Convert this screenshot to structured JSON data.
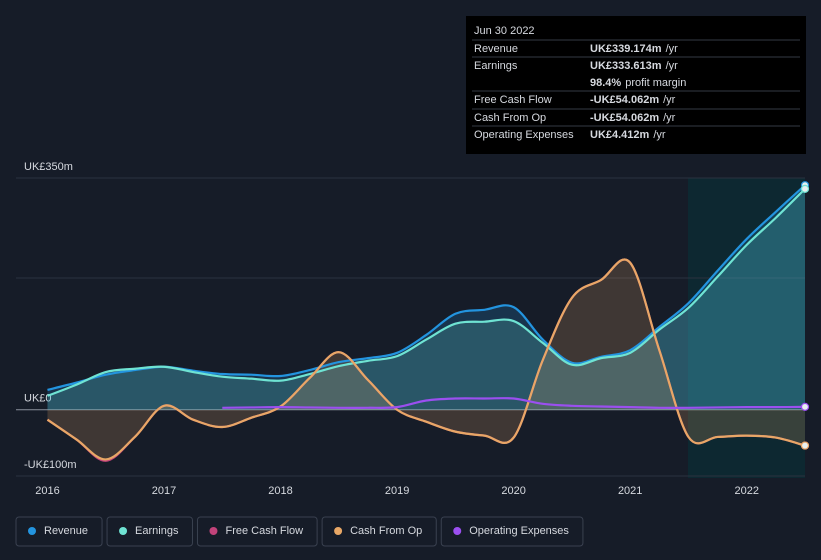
{
  "chart_data": {
    "type": "line",
    "x": [
      2016,
      2016.25,
      2016.5,
      2016.75,
      2017,
      2017.25,
      2017.5,
      2017.75,
      2018,
      2018.25,
      2018.5,
      2018.75,
      2019,
      2019.25,
      2019.5,
      2019.75,
      2020,
      2020.25,
      2020.5,
      2020.75,
      2021,
      2021.25,
      2021.5,
      2021.75,
      2022,
      2022.25,
      2022.5
    ],
    "xlim": [
      2015.73,
      2022.5
    ],
    "xticks": [
      2016,
      2017,
      2018,
      2019,
      2020,
      2021,
      2022
    ],
    "ylim": [
      -100,
      350
    ],
    "yticks": [
      {
        "value": 350,
        "label": "UK£350m"
      },
      {
        "value": 0,
        "label": "UK£0"
      },
      {
        "value": -100,
        "label": "-UK£100m"
      }
    ],
    "series": [
      {
        "name": "Revenue",
        "color": "#2394df",
        "area": true,
        "values": [
          30,
          41,
          53,
          60,
          65,
          59,
          54,
          53,
          51,
          60,
          72,
          78,
          86,
          113,
          145,
          151,
          155,
          106,
          71,
          80,
          90,
          125,
          161,
          210,
          258,
          299,
          339.174
        ]
      },
      {
        "name": "Earnings",
        "color": "#6fe3d3",
        "area": true,
        "values": [
          21,
          38,
          57,
          62,
          65,
          57,
          50,
          47,
          44,
          54,
          66,
          74,
          81,
          106,
          130,
          133,
          134,
          101,
          68,
          78,
          86,
          121,
          154,
          201,
          249,
          290,
          333.613
        ]
      },
      {
        "name": "Free Cash Flow",
        "color": "#c2437a",
        "area": false,
        "values": [
          -15,
          -45,
          -77,
          -41,
          6,
          -15,
          -26,
          -12,
          5,
          48,
          87,
          45,
          0,
          -18,
          -33,
          -39,
          -42,
          75,
          169,
          196,
          222,
          90,
          -41,
          -41,
          -39,
          -42,
          -54.062
        ]
      },
      {
        "name": "Cash From Op",
        "color": "#e8a766",
        "area": true,
        "values": [
          -15,
          -45,
          -75,
          -41,
          6,
          -15,
          -26,
          -12,
          5,
          48,
          87,
          45,
          0,
          -18,
          -33,
          -39,
          -42,
          75,
          169,
          196,
          222,
          90,
          -41,
          -41,
          -39,
          -42,
          -54.062
        ]
      },
      {
        "name": "Operating Expenses",
        "color": "#9b4ff0",
        "area": false,
        "values": [
          null,
          null,
          null,
          null,
          null,
          null,
          3,
          3.5,
          4,
          3.5,
          3,
          3,
          4,
          14,
          17,
          17,
          17,
          9,
          6,
          5,
          4,
          3,
          3,
          3.5,
          4,
          4,
          4.412
        ]
      }
    ],
    "tooltip": {
      "title": "Jun 30 2022",
      "rows": [
        {
          "label": "Revenue",
          "value": "UK£339.174m",
          "suffix": "/yr",
          "color": "#2394df"
        },
        {
          "label": "Earnings",
          "value": "UK£333.613m",
          "suffix": "/yr",
          "color": "#6fe3d3"
        },
        {
          "value": "98.4%",
          "suffix": "profit margin",
          "color": "#ffffff"
        },
        {
          "label": "Free Cash Flow",
          "value": "-UK£54.062m",
          "suffix": "/yr",
          "color": "#e84a4a"
        },
        {
          "label": "Cash From Op",
          "value": "-UK£54.062m",
          "suffix": "/yr",
          "color": "#e84a4a"
        },
        {
          "label": "Operating Expenses",
          "value": "UK£4.412m",
          "suffix": "/yr",
          "color": "#9b4ff0"
        }
      ]
    }
  }
}
